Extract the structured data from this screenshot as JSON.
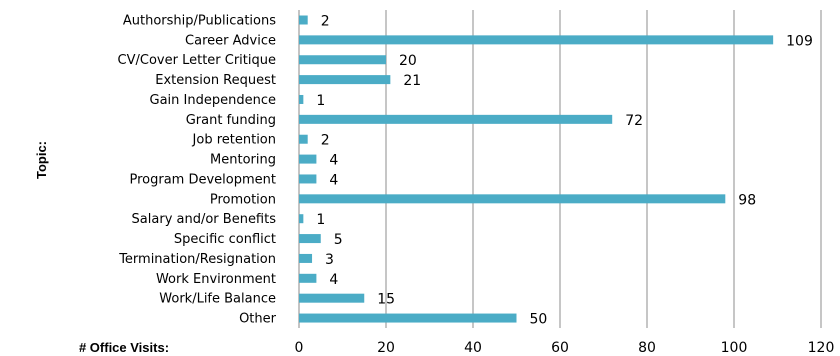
{
  "chart_data": {
    "type": "bar",
    "orientation": "horizontal",
    "title": "",
    "ylabel": "Topic:",
    "xlabel": "# Office Visits:",
    "xlim": [
      0,
      120
    ],
    "xticks": [
      0,
      20,
      40,
      60,
      80,
      100,
      120
    ],
    "grid": true,
    "bar_color": "#4bacc6",
    "categories": [
      "Authorship/Publications",
      "Career Advice",
      "CV/Cover Letter Critique",
      "Extension Request",
      "Gain Independence",
      "Grant funding",
      "Job retention",
      "Mentoring",
      "Program Development",
      "Promotion",
      "Salary and/or Benefits",
      "Specific conflict",
      "Termination/Resignation",
      "Work Environment",
      "Work/Life Balance",
      "Other"
    ],
    "values": [
      2,
      109,
      20,
      21,
      1,
      72,
      2,
      4,
      4,
      98,
      1,
      5,
      3,
      4,
      15,
      50
    ]
  }
}
